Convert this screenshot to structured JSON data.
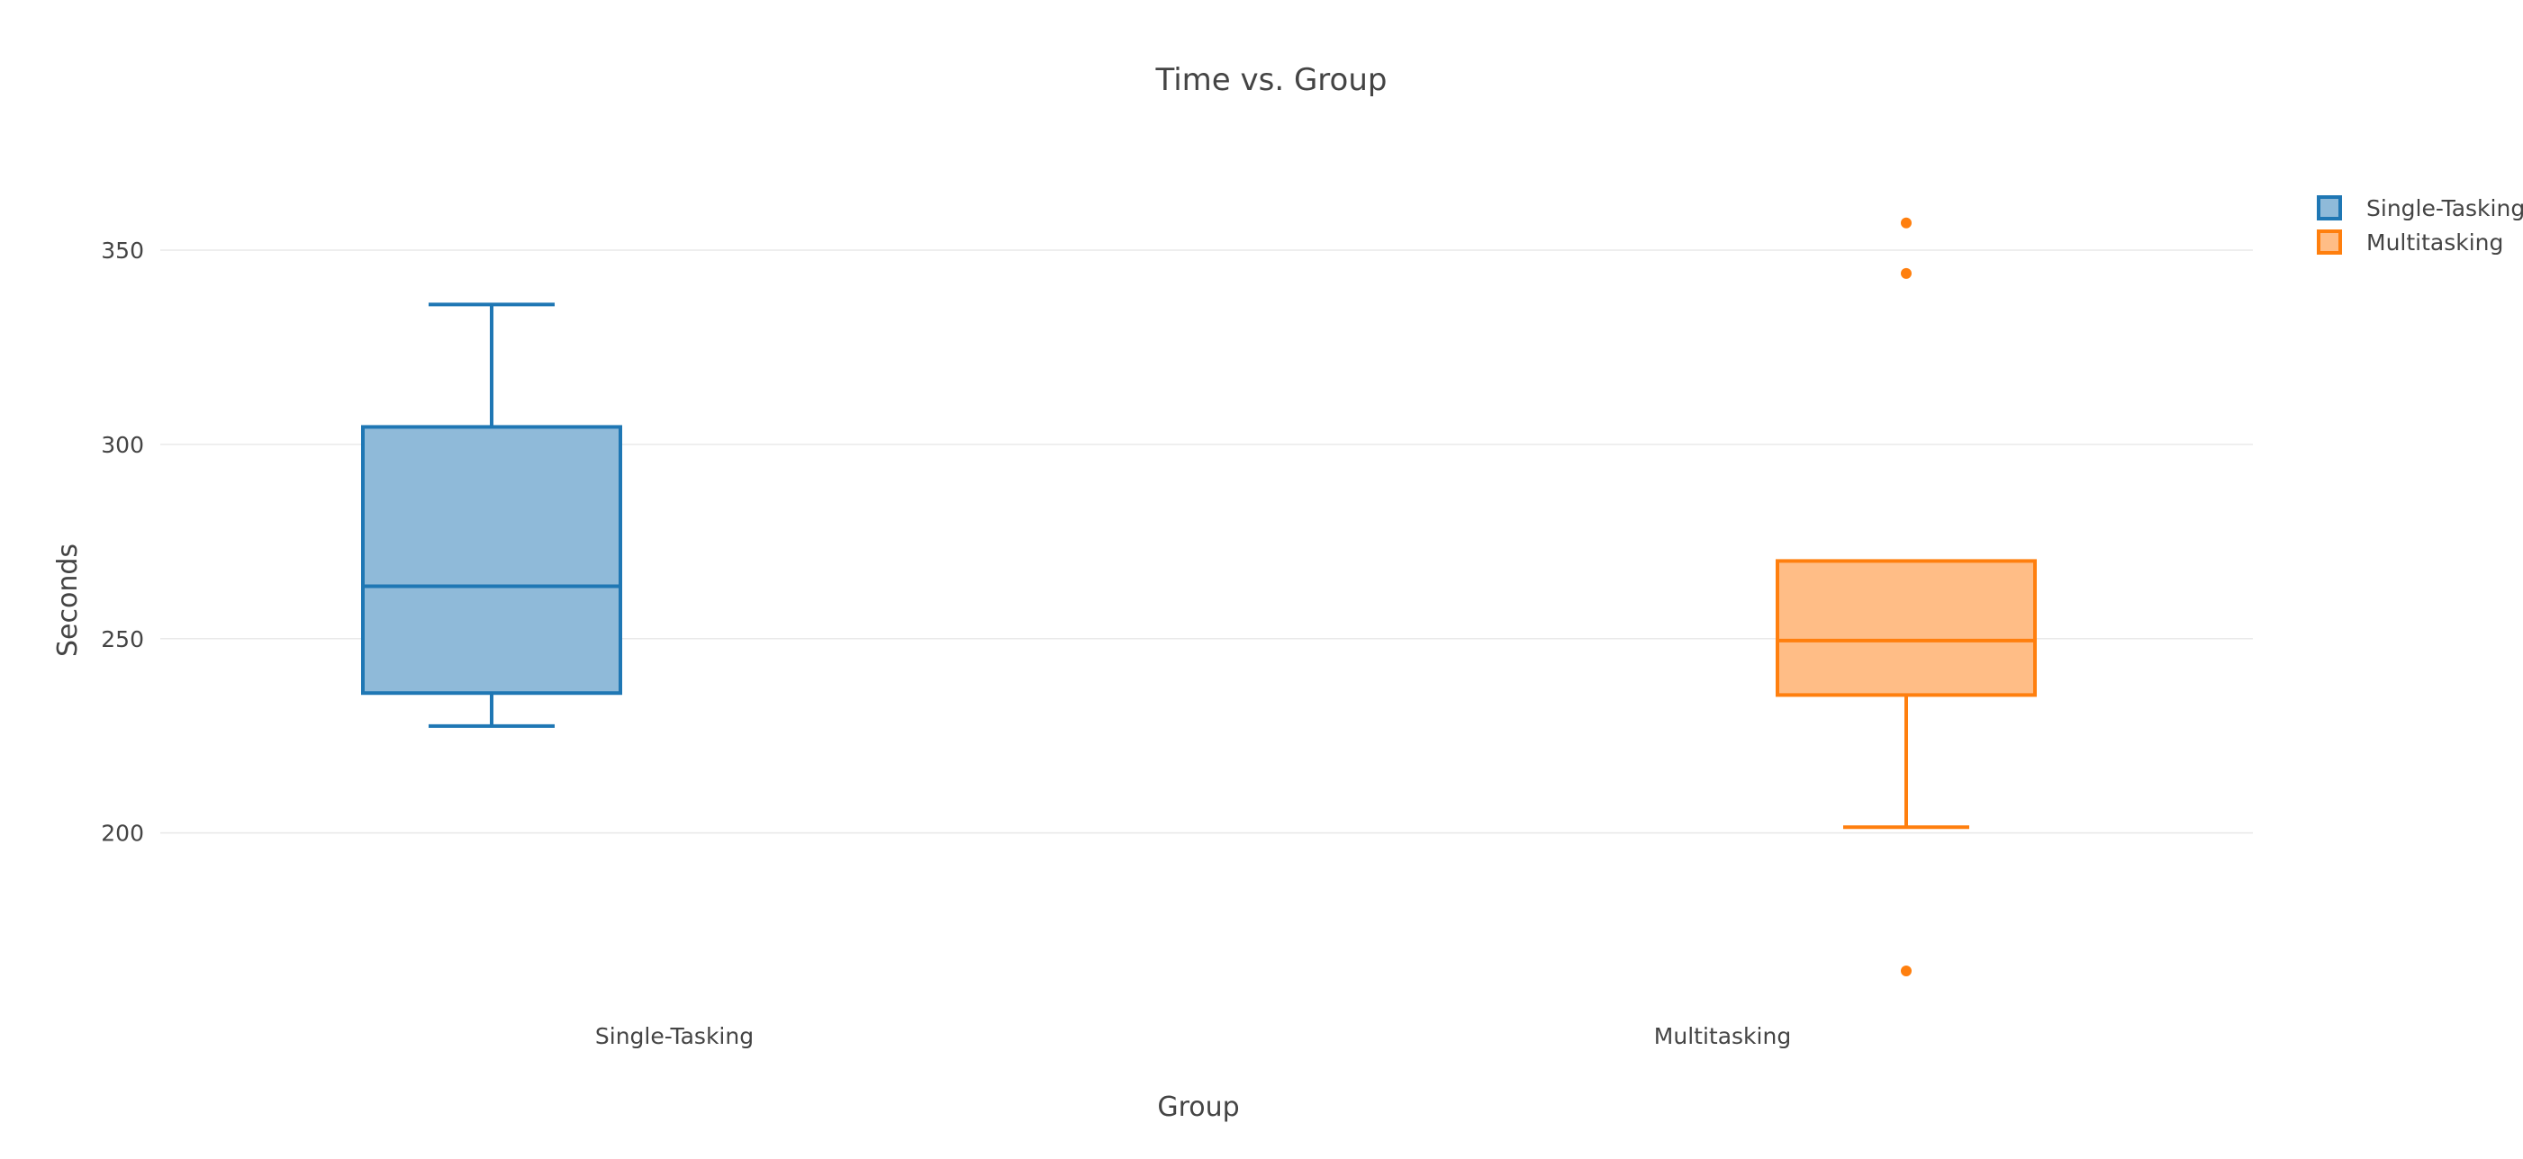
{
  "chart_data": {
    "type": "box",
    "title": "Time vs. Group",
    "xlabel": "Group",
    "ylabel": "Seconds",
    "ylim": [
      155,
      375
    ],
    "yticks": [
      200,
      250,
      300,
      350
    ],
    "grid": true,
    "legend_position": "top-right",
    "categories": [
      "Single-Tasking",
      "Multitasking"
    ],
    "series": [
      {
        "name": "Single-Tasking",
        "color": "#1f77b4",
        "fill": "#8fbad9",
        "min": 227.5,
        "q1": 236,
        "median": 263.5,
        "q3": 304.5,
        "max": 336,
        "outliers": []
      },
      {
        "name": "Multitasking",
        "color": "#ff7f0e",
        "fill": "#ffbd86",
        "min": 201.5,
        "q1": 235.5,
        "median": 249.5,
        "q3": 270,
        "max": 270,
        "outliers": [
          357,
          344,
          164.5
        ]
      }
    ]
  }
}
